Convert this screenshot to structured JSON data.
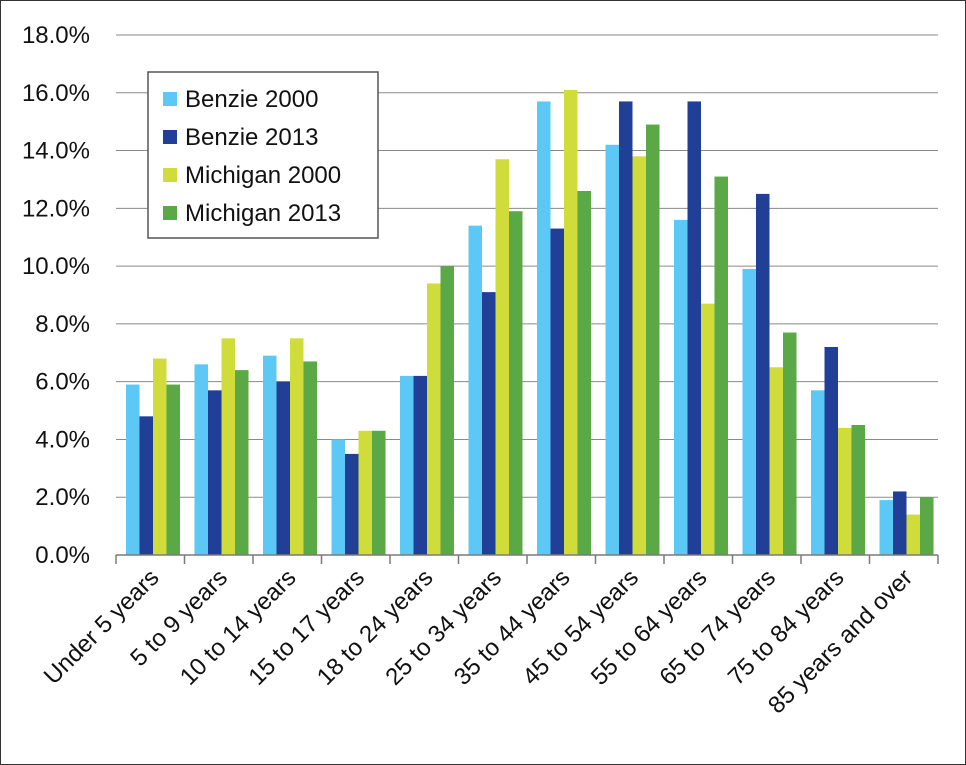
{
  "chart_data": {
    "type": "bar",
    "ylim": [
      0,
      18
    ],
    "y_ticks": [
      "0.0%",
      "2.0%",
      "4.0%",
      "6.0%",
      "8.0%",
      "10.0%",
      "12.0%",
      "14.0%",
      "16.0%",
      "18.0%"
    ],
    "y_tick_values": [
      0,
      2,
      4,
      6,
      8,
      10,
      12,
      14,
      16,
      18
    ],
    "grid": true,
    "legend_position": "top-left",
    "categories": [
      "Under 5 years",
      "5 to 9 years",
      "10 to 14 years",
      "15 to 17 years",
      "18 to 24 years",
      "25 to 34 years",
      "35 to 44 years",
      "45 to 54 years",
      "55 to 64 years",
      "65 to 74 years",
      "75 to 84 years",
      "85 years and over"
    ],
    "series": [
      {
        "name": "Benzie 2000",
        "color": "#5bc8f5",
        "values": [
          5.9,
          6.6,
          6.9,
          4.0,
          6.2,
          11.4,
          15.7,
          14.2,
          11.6,
          9.9,
          5.7,
          1.9
        ]
      },
      {
        "name": "Benzie 2013",
        "color": "#213f97",
        "values": [
          4.8,
          5.7,
          6.0,
          3.5,
          6.2,
          9.1,
          11.3,
          15.7,
          15.7,
          12.5,
          7.2,
          2.2
        ]
      },
      {
        "name": "Michigan 2000",
        "color": "#cfdc3a",
        "values": [
          6.8,
          7.5,
          7.5,
          4.3,
          9.4,
          13.7,
          16.1,
          13.8,
          8.7,
          6.5,
          4.4,
          1.4
        ]
      },
      {
        "name": "Michigan 2013",
        "color": "#5aa846",
        "values": [
          5.9,
          6.4,
          6.7,
          4.3,
          10.0,
          11.9,
          12.6,
          14.9,
          13.1,
          7.7,
          4.5,
          2.0
        ]
      }
    ]
  }
}
